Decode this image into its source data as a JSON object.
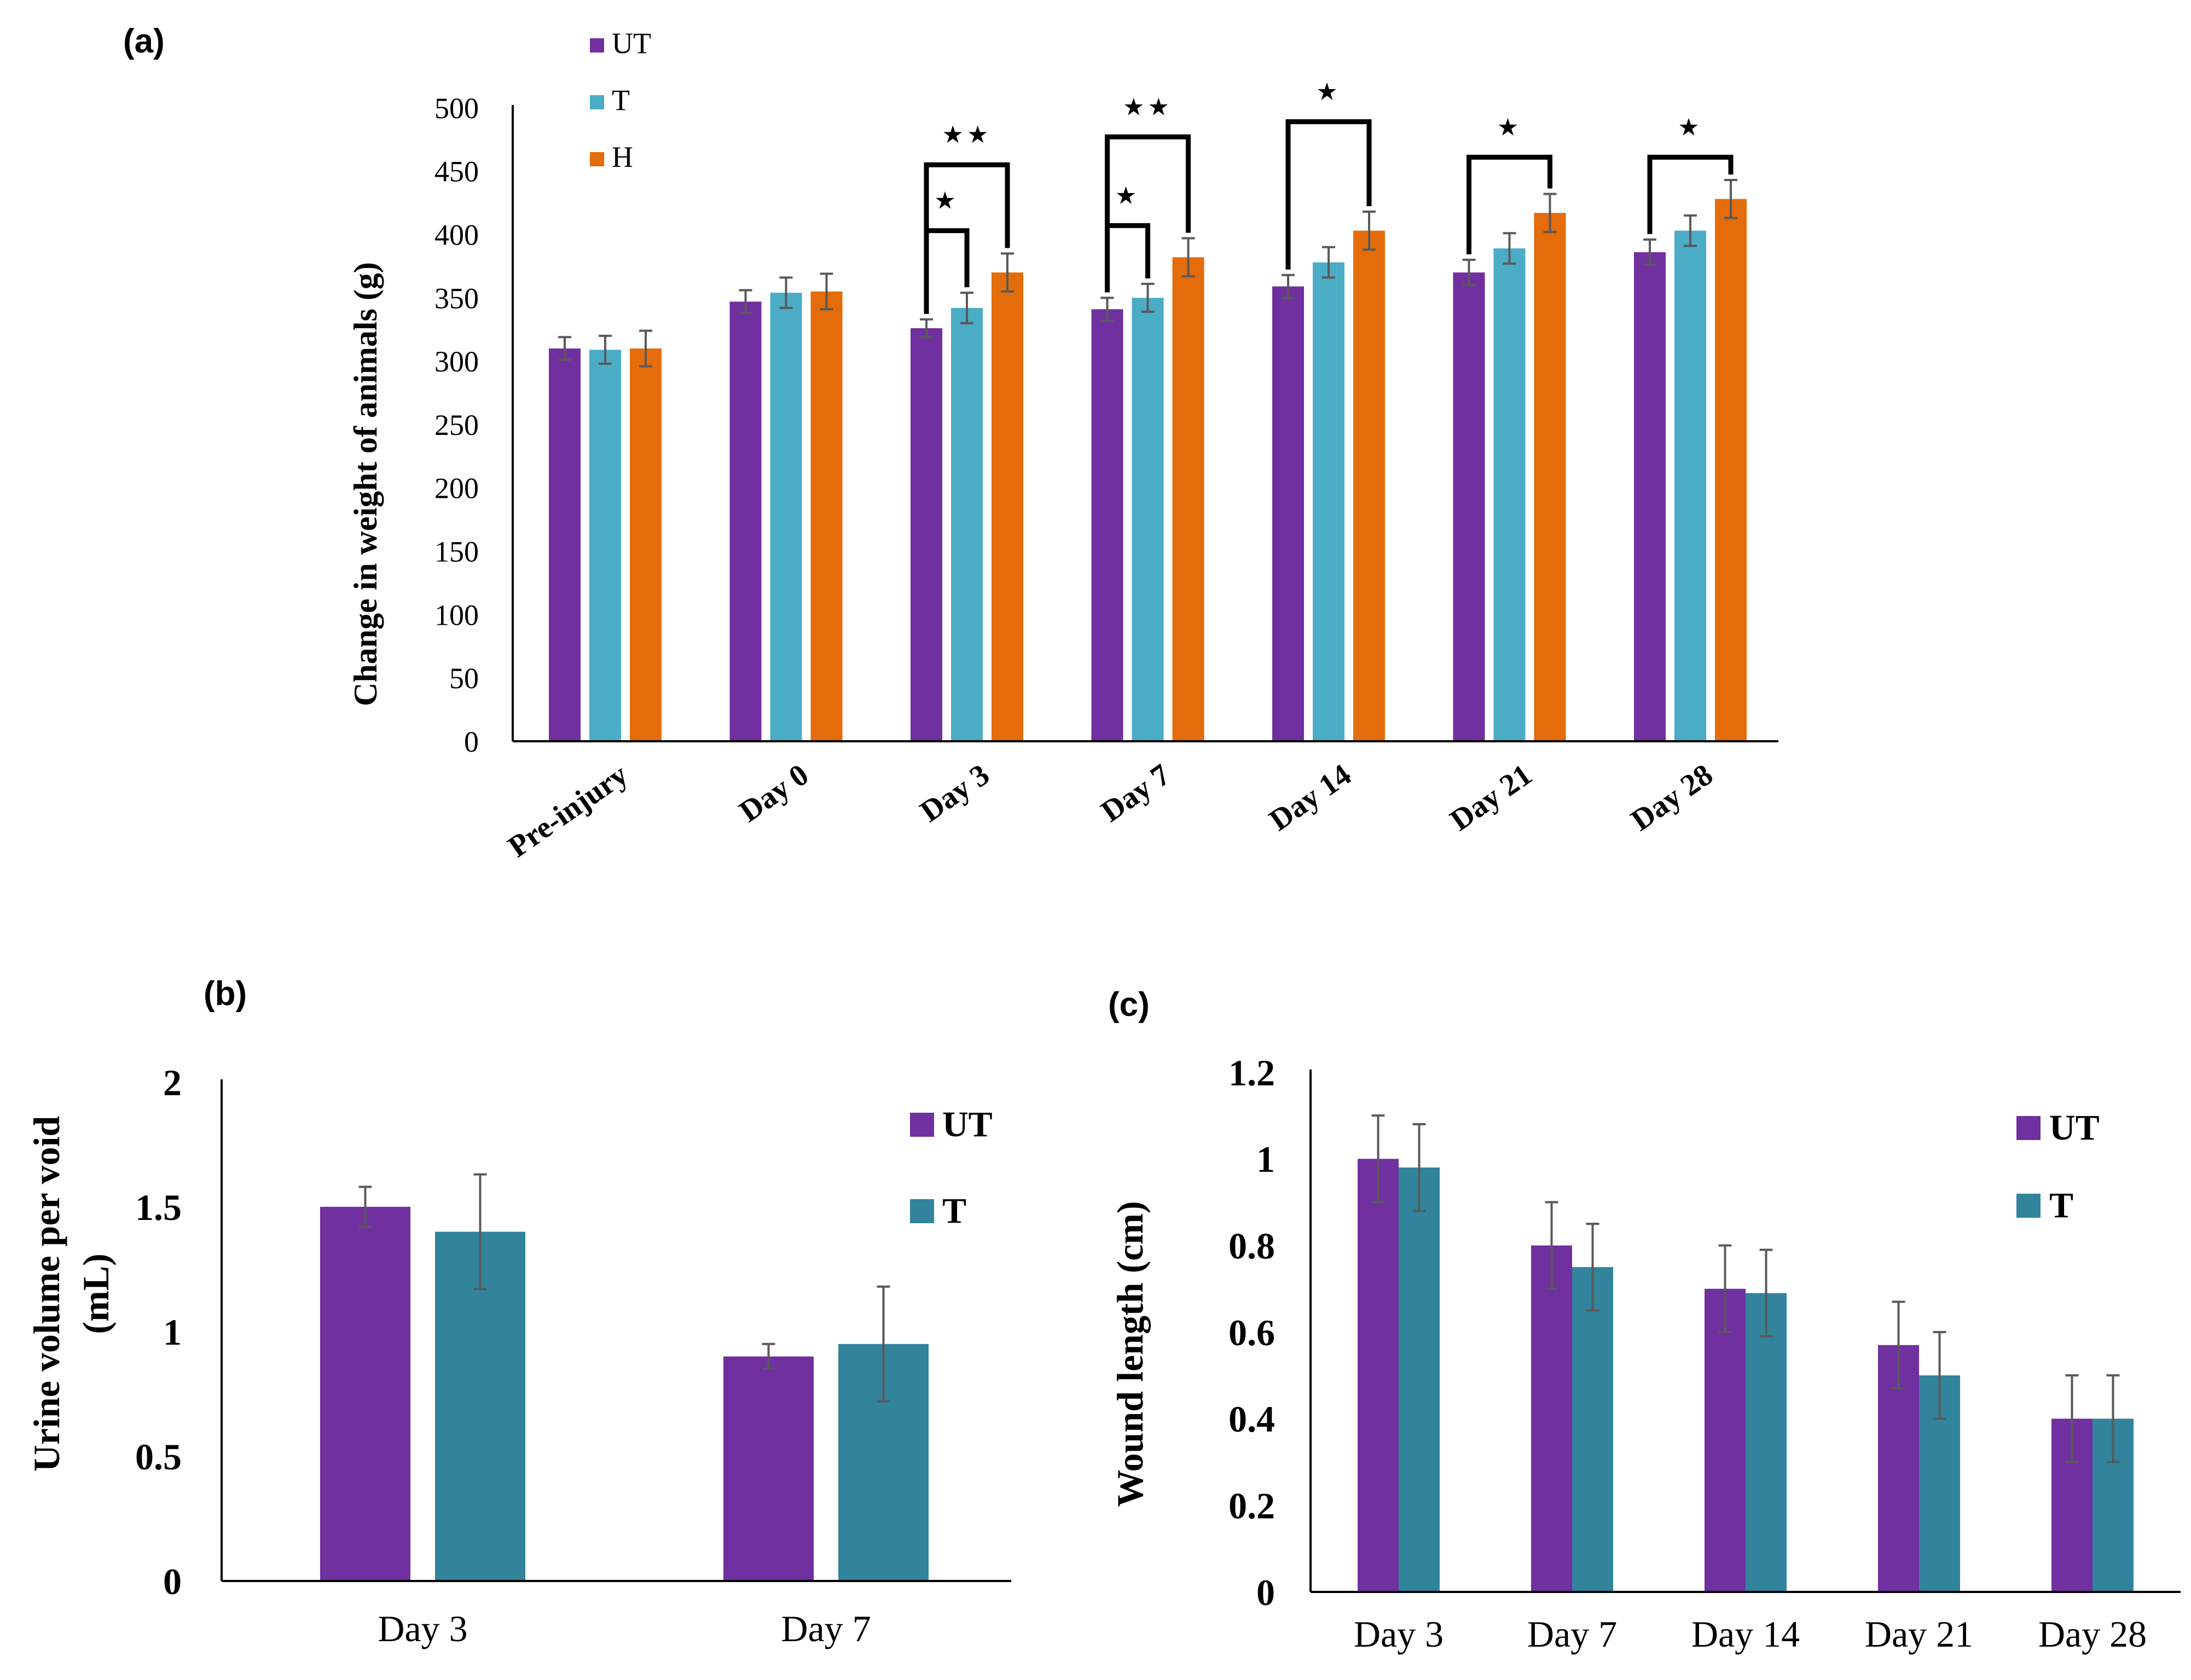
{
  "colors": {
    "ut": "#7030A0",
    "t_light": "#4BACC6",
    "h": "#E46C0A",
    "t_dark": "#31849B",
    "axis": "#000000",
    "errorbar": "#595959"
  },
  "chart_data": [
    {
      "panel_label": "(a)",
      "type": "bar",
      "ylabel": "Change in weight of animals (g)",
      "ylim": [
        0,
        500
      ],
      "yticks": [
        "0",
        "50",
        "100",
        "150",
        "200",
        "250",
        "300",
        "350",
        "400",
        "450",
        "500"
      ],
      "categories": [
        "Pre-injury",
        "Day 0",
        "Day 3",
        "Day 7",
        "Day 14",
        "Day 21",
        "Day 28"
      ],
      "legend_position": "top-left",
      "series": [
        {
          "name": "UT",
          "color_key": "ut",
          "values": [
            310,
            347,
            326,
            341,
            359,
            370,
            386
          ],
          "errors": [
            9,
            9,
            7,
            9,
            9,
            10,
            10
          ]
        },
        {
          "name": "T",
          "color_key": "t_light",
          "values": [
            309,
            354,
            342,
            350,
            378,
            389,
            403
          ],
          "errors": [
            11,
            12,
            12,
            11,
            12,
            12,
            12
          ]
        },
        {
          "name": "H",
          "color_key": "h",
          "values": [
            310,
            355,
            370,
            382,
            403,
            417,
            428
          ],
          "errors": [
            14,
            14,
            15,
            15,
            15,
            15,
            15
          ]
        }
      ],
      "annotations": [
        {
          "category": "Day 3",
          "text": "★★",
          "from_series": 0,
          "to_series": 2,
          "bracket_level": 455
        },
        {
          "category": "Day 3",
          "text": "★",
          "from_series": 0,
          "to_series": 1,
          "bracket_level": 403
        },
        {
          "category": "Day 7",
          "text": "★★",
          "from_series": 0,
          "to_series": 2,
          "bracket_level": 477
        },
        {
          "category": "Day 7",
          "text": "★",
          "from_series": 0,
          "to_series": 1,
          "bracket_level": 407
        },
        {
          "category": "Day 14",
          "text": "★",
          "from_series": 0,
          "to_series": 2,
          "bracket_level": 489
        },
        {
          "category": "Day 21",
          "text": "★",
          "from_series": 0,
          "to_series": 2,
          "bracket_level": 461
        },
        {
          "category": "Day 28",
          "text": "★",
          "from_series": 0,
          "to_series": 2,
          "bracket_level": 461
        }
      ]
    },
    {
      "panel_label": "(b)",
      "type": "bar",
      "ylabel": "Urine volume per void (mL)",
      "ylabel_lines": [
        "Urine volume per void",
        "(mL)"
      ],
      "ylim": [
        0,
        2
      ],
      "yticks": [
        "0",
        "0.5",
        "1",
        "1.5",
        "2"
      ],
      "categories": [
        "Day 3",
        "Day 7"
      ],
      "legend_position": "top-right",
      "series": [
        {
          "name": "UT",
          "color_key": "ut",
          "values": [
            1.5,
            0.9
          ],
          "errors": [
            0.08,
            0.05
          ]
        },
        {
          "name": "T",
          "color_key": "t_dark",
          "values": [
            1.4,
            0.95
          ],
          "errors": [
            0.23,
            0.23
          ]
        }
      ]
    },
    {
      "panel_label": "(c)",
      "type": "bar",
      "ylabel": "Wound length (cm)",
      "ylim": [
        0,
        1.2
      ],
      "yticks": [
        "0",
        "0.2",
        "0.4",
        "0.6",
        "0.8",
        "1",
        "1.2"
      ],
      "categories": [
        "Day 3",
        "Day 7",
        "Day 14",
        "Day 21",
        "Day 28"
      ],
      "legend_position": "top-right",
      "series": [
        {
          "name": "UT",
          "color_key": "ut",
          "values": [
            1.0,
            0.8,
            0.7,
            0.57,
            0.4
          ],
          "errors": [
            0.1,
            0.1,
            0.1,
            0.1,
            0.1
          ]
        },
        {
          "name": "T",
          "color_key": "t_dark",
          "values": [
            0.98,
            0.75,
            0.69,
            0.5,
            0.4
          ],
          "errors": [
            0.1,
            0.1,
            0.1,
            0.1,
            0.1
          ]
        }
      ]
    }
  ]
}
